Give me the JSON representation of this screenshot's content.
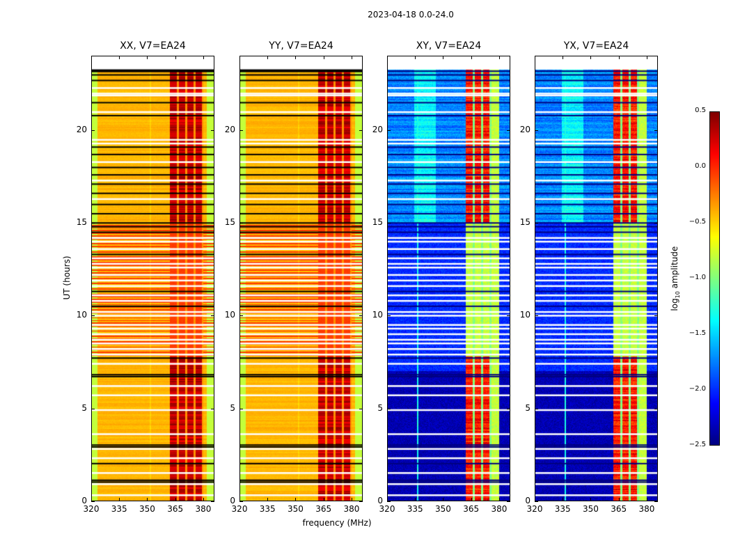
{
  "chart_data": {
    "type": "heatmap",
    "title": "2023-04-18 0.0-24.0",
    "xlabel": "frequency (MHz)",
    "ylabel": "UT (hours)",
    "xlim": [
      320,
      386
    ],
    "ylim": [
      0,
      24
    ],
    "xticks": [
      320,
      335,
      350,
      365,
      380
    ],
    "yticks": [
      0,
      5,
      10,
      15,
      20
    ],
    "panels": [
      {
        "title": "XX, V7=EA24",
        "kind": "parallel"
      },
      {
        "title": "YY, V7=EA24",
        "kind": "parallel"
      },
      {
        "title": "XY, V7=EA24",
        "kind": "cross"
      },
      {
        "title": "YX, V7=EA24",
        "kind": "cross"
      }
    ],
    "colorbar": {
      "label_main": "log",
      "label_sub": "10",
      "label_rest": " amplitude",
      "colormap": "jet",
      "range": [
        -2.5,
        0.5
      ],
      "ticks": [
        "0.5",
        "0.0",
        "−0.5",
        "−1.0",
        "−1.5",
        "−2.0",
        "−2.5"
      ]
    },
    "rfi_band_mhz": [
      362,
      380
    ],
    "flagged_hours_black": [
      1.0,
      1.1,
      2.0,
      2.9,
      3.0,
      6.7,
      6.8,
      7.7,
      10.5,
      11.3,
      13.3,
      14.5,
      14.8,
      15.0,
      15.5,
      16.0,
      16.6,
      17.1,
      17.6,
      18.0,
      18.7,
      19.1,
      20.8,
      21.5,
      22.7,
      23.0,
      23.2
    ],
    "flagged_hours_white": [
      0.3,
      0.9,
      1.5,
      2.3,
      2.8,
      3.6,
      4.9,
      5.7,
      6.2,
      7.4,
      7.9,
      8.2,
      8.5,
      8.7,
      9.0,
      9.3,
      9.5,
      10.0,
      10.2,
      10.8,
      11.1,
      11.6,
      11.9,
      12.2,
      12.6,
      12.8,
      13.1,
      13.6,
      14.0,
      14.2,
      16.3,
      17.3,
      18.3,
      19.3,
      19.5,
      21.0,
      21.9,
      22.0,
      22.3
    ]
  }
}
